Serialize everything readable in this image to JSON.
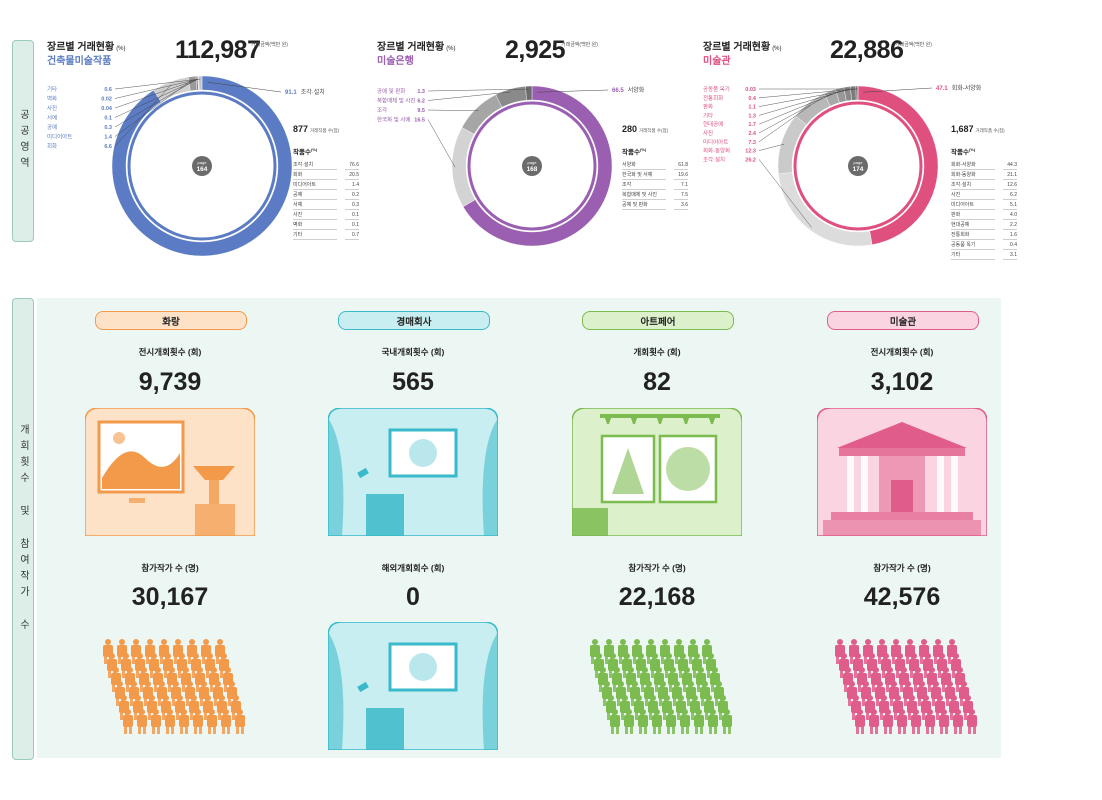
{
  "side_tabs": {
    "top": "공공영역",
    "bottom": "개회횟수 및 참여작가 수"
  },
  "chart_data": [
    {
      "type": "pie",
      "title": "장르별 거래현황",
      "title_unit": "(%)",
      "subtitle": "건축물미술작품",
      "total": "112,987",
      "total_unit": "거래금액(백만 원)",
      "page_label": "page",
      "page": "164",
      "accent": "#5b7cc4",
      "categories": [
        "조각·설치",
        "회화",
        "미디어아트",
        "공예",
        "서예",
        "사진",
        "벽화",
        "기타"
      ],
      "values": [
        91.1,
        6.6,
        1.4,
        0.3,
        0.1,
        0.04,
        0.02,
        0.6
      ],
      "display_values": [
        "91.1",
        "6.6",
        "1.4",
        "0.3",
        "0.1",
        "0.04",
        "0.02",
        "0.6"
      ],
      "works_count": "877",
      "works_unit": "거래작품 수(점)",
      "works_label": "작품수",
      "works_label_unit": "(%)",
      "works_table": [
        {
          "name": "조각·설치",
          "value": "76.6"
        },
        {
          "name": "회화",
          "value": "20.5"
        },
        {
          "name": "미디어아트",
          "value": "1.4"
        },
        {
          "name": "공예",
          "value": "0.2"
        },
        {
          "name": "서예",
          "value": "0.3"
        },
        {
          "name": "사진",
          "value": "0.1"
        },
        {
          "name": "벽화",
          "value": "0.1"
        },
        {
          "name": "기타",
          "value": "0.7"
        }
      ]
    },
    {
      "type": "pie",
      "title": "장르별 거래현황",
      "title_unit": "(%)",
      "subtitle": "미술은행",
      "total": "2,925",
      "total_unit": "거래금액(백만 원)",
      "page_label": "page",
      "page": "168",
      "accent": "#9b5fb1",
      "categories": [
        "서양화",
        "한국화 및 서예",
        "조각",
        "복합매체 및 사진",
        "공예 및 판화"
      ],
      "values": [
        66.5,
        16.5,
        9.5,
        6.2,
        1.3
      ],
      "display_values": [
        "66.5",
        "16.5",
        "9.5",
        "6.2",
        "1.3"
      ],
      "works_count": "280",
      "works_unit": "거래작품 수(점)",
      "works_label": "작품수",
      "works_label_unit": "(%)",
      "works_table": [
        {
          "name": "서양화",
          "value": "61.8"
        },
        {
          "name": "한국화 및 서예",
          "value": "19.6"
        },
        {
          "name": "조각",
          "value": "7.1"
        },
        {
          "name": "복합매체 및 사진",
          "value": "7.5"
        },
        {
          "name": "공예 및 판화",
          "value": "3.6"
        }
      ]
    },
    {
      "type": "pie",
      "title": "장르별 거래현황",
      "title_unit": "(%)",
      "subtitle": "미술관",
      "total": "22,886",
      "total_unit": "거래금액(백만 원)",
      "page_label": "page",
      "page": "174",
      "accent": "#e0507f",
      "categories": [
        "회화-서양화",
        "조각·설치",
        "회화-동양화",
        "미디어아트",
        "사진",
        "현대공예",
        "기타",
        "판화",
        "전통회화",
        "공동품 옥기"
      ],
      "values": [
        47.1,
        26.2,
        12.3,
        7.3,
        2.4,
        1.7,
        1.3,
        1.1,
        0.4,
        0.03
      ],
      "display_values": [
        "47.1",
        "26.2",
        "12.3",
        "7.3",
        "2.4",
        "1.7",
        "1.3",
        "1.1",
        "0.4",
        "0.03"
      ],
      "works_count": "1,687",
      "works_unit": "거래작품 수(점)",
      "works_label": "작품수",
      "works_label_unit": "(%)",
      "works_table": [
        {
          "name": "회화-서양화",
          "value": "44.3"
        },
        {
          "name": "회화-동양화",
          "value": "21.1"
        },
        {
          "name": "조각·설치",
          "value": "12.6"
        },
        {
          "name": "사진",
          "value": "6.2"
        },
        {
          "name": "미디어아트",
          "value": "5.1"
        },
        {
          "name": "판화",
          "value": "4.0"
        },
        {
          "name": "현대공예",
          "value": "2.2"
        },
        {
          "name": "전통회화",
          "value": "1.6"
        },
        {
          "name": "공동품 옥기",
          "value": "0.4"
        },
        {
          "name": "기타",
          "value": "3.1"
        }
      ]
    }
  ],
  "sections": [
    {
      "pill": "화랑",
      "color": "#f39a4a",
      "light": "#fde2c8",
      "stat1_label": "전시개회횟수 (회)",
      "stat1_value": "9,739",
      "stat2_label": "참가작가 수 (명)",
      "stat2_value": "30,167"
    },
    {
      "pill": "경매회사",
      "color": "#39b9c9",
      "light": "#c8eef2",
      "stat1_label": "국내개회횟수 (회)",
      "stat1_value": "565",
      "stat2_label": "해외개회회수 (회)",
      "stat2_value": "0"
    },
    {
      "pill": "아트페어",
      "color": "#7bbb4f",
      "light": "#dcf0cc",
      "stat1_label": "개회횟수 (회)",
      "stat1_value": "82",
      "stat2_label": "참가작가 수 (명)",
      "stat2_value": "22,168"
    },
    {
      "pill": "미술관",
      "color": "#e05c8a",
      "light": "#fbd4e1",
      "stat1_label": "전시개회횟수 (회)",
      "stat1_value": "3,102",
      "stat2_label": "참가작가 수 (명)",
      "stat2_value": "42,576"
    }
  ]
}
